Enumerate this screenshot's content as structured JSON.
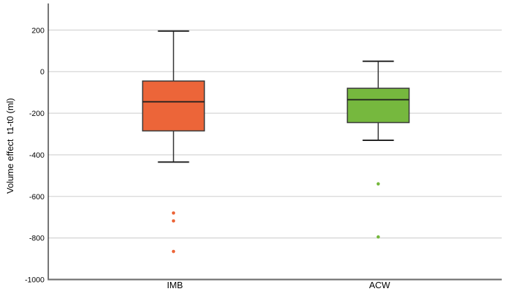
{
  "figure": {
    "background": "#FFFFFF"
  },
  "chart_data": {
    "type": "boxplot",
    "title": "",
    "xlabel": "",
    "ylabel": "Volume effect  t1-t0 (ml)",
    "ylim": [
      -1000,
      328
    ],
    "yticks": [
      200,
      0,
      -200,
      -400,
      -600,
      -800,
      -1000
    ],
    "grid": true,
    "legend": "none",
    "categories": [
      "IMB",
      "ACW"
    ],
    "series": [
      {
        "name": "IMB",
        "box_color": "#EC6539",
        "whisker_high": 195,
        "q3": -45,
        "median": -145,
        "q1": -285,
        "whisker_low": -435,
        "outliers": [
          -680,
          -718,
          -865
        ]
      },
      {
        "name": "ACW",
        "box_color": "#76B83E",
        "whisker_high": 50,
        "q3": -80,
        "median": -135,
        "q1": -245,
        "whisker_low": -330,
        "outliers": [
          -540,
          -795
        ]
      }
    ],
    "colors": {
      "gridline": "#D8D8D8",
      "x_axis_line": "#6F6F6F",
      "y_axis_line": "#3C3C3C",
      "box_stroke": "#3B3B3B",
      "median_stroke": "#1F1F1F",
      "whisker_stroke": "#3A3A3A",
      "text": "#000000"
    }
  }
}
